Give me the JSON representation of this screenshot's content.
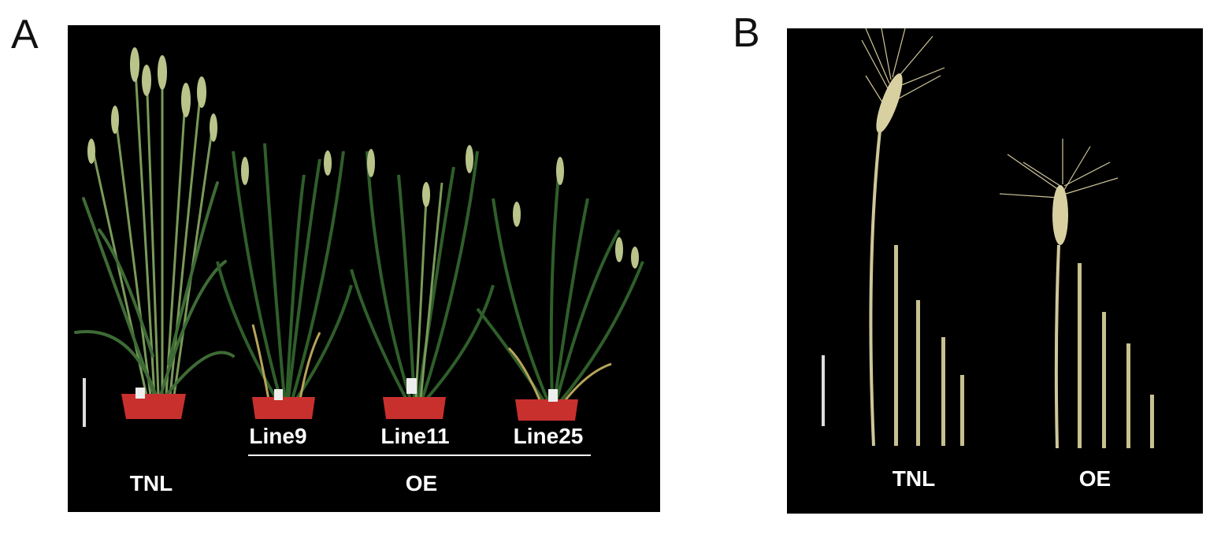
{
  "panel_a": {
    "letter": "A",
    "lines": [
      "Line9",
      "Line11",
      "Line25"
    ],
    "control_label": "TNL",
    "group_label": "OE"
  },
  "panel_b": {
    "letter": "B",
    "labels": [
      "TNL",
      "OE"
    ]
  },
  "colors": {
    "background": "#000000",
    "pot": "#c8302e",
    "leaf": "#3f6e2e",
    "straw": "#cfc79a"
  }
}
